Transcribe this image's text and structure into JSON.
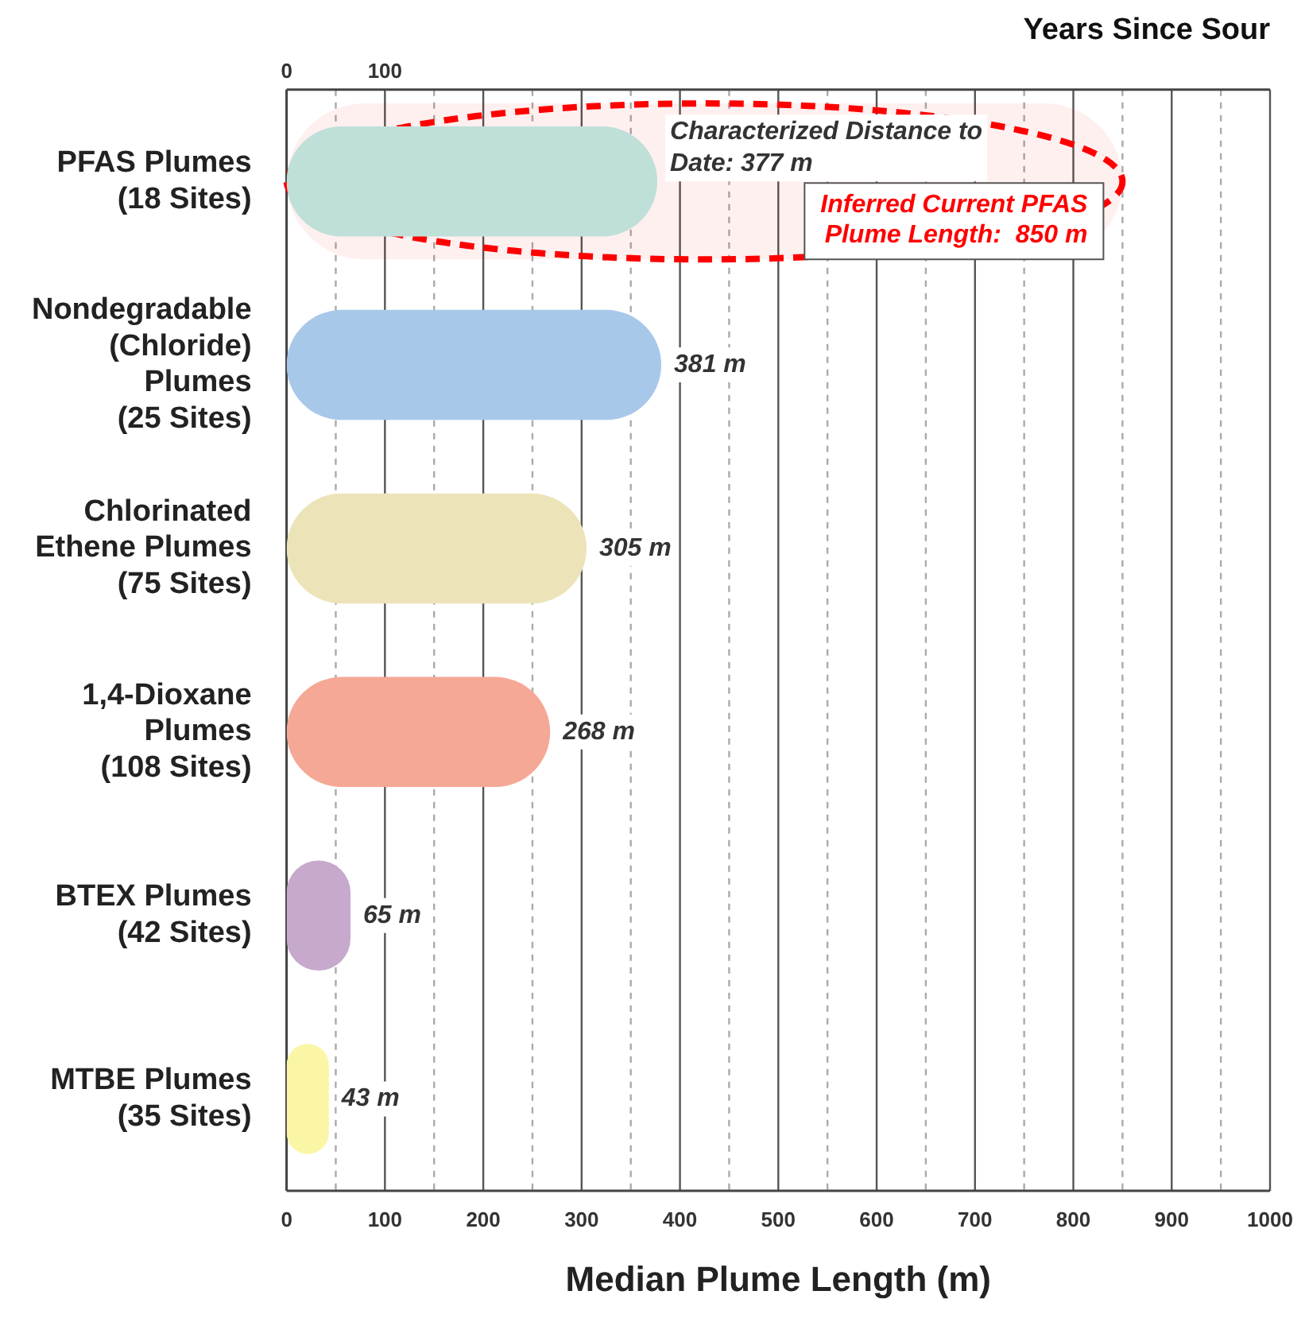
{
  "chart_data": {
    "type": "bar",
    "orientation": "horizontal",
    "xlabel": "Median Plume Length (m)",
    "x2label": "Years Since Sour",
    "categories": [
      "PFAS Plumes\n(18 Sites)",
      "Nondegradable\n(Chloride)\nPlumes\n(25 Sites)",
      "Chlorinated\nEthene Plumes\n(75 Sites)",
      "1,4-Dioxane\nPlumes\n(108 Sites)",
      "BTEX Plumes\n(42 Sites)",
      "MTBE Plumes\n(35 Sites)"
    ],
    "series": [
      {
        "colors": [
          "#bfe0d8",
          "#a8c8ea",
          "#ece4b8",
          "#f5a896",
          "#c6a9cd",
          "#fbf6a6"
        ],
        "values": [
          377,
          381,
          305,
          268,
          65,
          43
        ],
        "value_labels": [
          "Characterized Distance to Date: 377 m",
          "381 m",
          "305 m",
          "268 m",
          "65 m",
          "43 m"
        ]
      },
      {
        "color": "#ff0000",
        "line_style": "dashed",
        "values": [
          850,
          null,
          null,
          null,
          null,
          null
        ],
        "value_labels": [
          "Inferred Current PFAS Plume Length:  850 m",
          null,
          null,
          null,
          null,
          null
        ]
      }
    ],
    "xlim": [
      0,
      1000
    ],
    "xticks": [
      0,
      {
        "value": 50,
        "label": null
      },
      100,
      {
        "value": 150,
        "label": null
      },
      200,
      {
        "value": 250,
        "label": null
      },
      300,
      {
        "value": 350,
        "label": null
      },
      400,
      {
        "value": 450,
        "label": null
      },
      500,
      {
        "value": 550,
        "label": null
      },
      600,
      {
        "value": 650,
        "label": null
      },
      700,
      {
        "value": 750,
        "label": null
      },
      800,
      {
        "value": 850,
        "label": null
      },
      900,
      {
        "value": 950,
        "label": null
      },
      1000
    ],
    "x2lim": [
      0,
      1000
    ],
    "x2ticks": [
      0,
      100
    ],
    "grid": "x",
    "legend": false
  }
}
